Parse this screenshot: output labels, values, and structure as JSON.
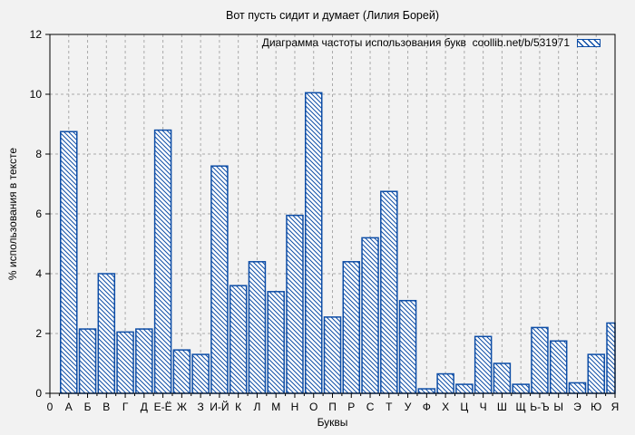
{
  "colors": {
    "background": "#f2f2f2",
    "bar_stroke": "#0d4da6",
    "bar_hatch": "#0d4da6",
    "bar_fill": "#ffffff",
    "grid": "#aaaaaa",
    "axis": "#000000",
    "text": "#000000"
  },
  "chart_data": {
    "type": "bar",
    "title": "Вот пусть сидит и думает (Лилия Борей)",
    "legend_label": "Диаграмма частоты использования букв  coollib.net/b/531971",
    "legend_position": "top-right-inside",
    "xlabel": "Буквы",
    "ylabel": "% использования в тексте",
    "origin_label": "0",
    "ylim": [
      0,
      12
    ],
    "y_ticks": [
      0,
      2,
      4,
      6,
      8,
      10,
      12
    ],
    "grid": true,
    "bar_style": "blue-diagonal-hatch",
    "categories": [
      "А",
      "Б",
      "В",
      "Г",
      "Д",
      "Е-Ё",
      "Ж",
      "З",
      "И-Й",
      "К",
      "Л",
      "М",
      "Н",
      "О",
      "П",
      "Р",
      "С",
      "Т",
      "У",
      "Ф",
      "Х",
      "Ц",
      "Ч",
      "Ш",
      "Щ",
      "Ь-Ъ",
      "Ы",
      "Э",
      "Ю",
      "Я"
    ],
    "values": [
      8.75,
      2.15,
      4.0,
      2.05,
      2.15,
      8.8,
      1.45,
      1.3,
      7.6,
      3.6,
      4.4,
      3.4,
      5.95,
      10.05,
      2.55,
      4.4,
      5.2,
      6.75,
      3.1,
      0.15,
      0.65,
      0.3,
      1.9,
      1.0,
      0.3,
      2.2,
      1.75,
      0.35,
      1.3,
      2.35
    ]
  }
}
